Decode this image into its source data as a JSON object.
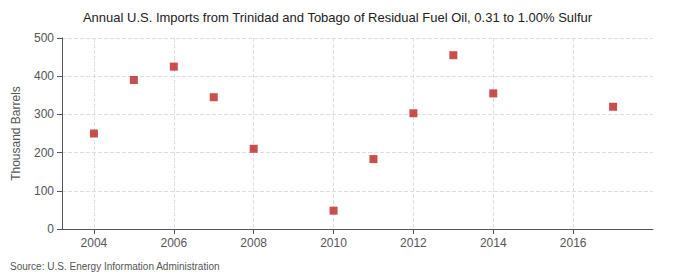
{
  "chart_data": {
    "type": "scatter",
    "title": "Annual U.S. Imports from Trinidad and Tobago of Residual Fuel Oil, 0.31 to 1.00% Sulfur",
    "ylabel": "Thousand Barrels",
    "annotations": [
      "Source: U.S. Energy Information Administration"
    ],
    "x": [
      2004,
      2005,
      2006,
      2007,
      2008,
      2010,
      2011,
      2012,
      2013,
      2014,
      2017
    ],
    "values": [
      250,
      390,
      425,
      345,
      210,
      48,
      183,
      303,
      455,
      355,
      320
    ],
    "xlim": [
      2003.2,
      2018
    ],
    "xticks": [
      2004,
      2006,
      2008,
      2010,
      2012,
      2014,
      2016
    ],
    "ylim": [
      0,
      500
    ],
    "yticks": [
      0,
      100,
      200,
      300,
      400,
      500
    ],
    "color": "#bb2222",
    "marker": "square",
    "grid": true
  }
}
